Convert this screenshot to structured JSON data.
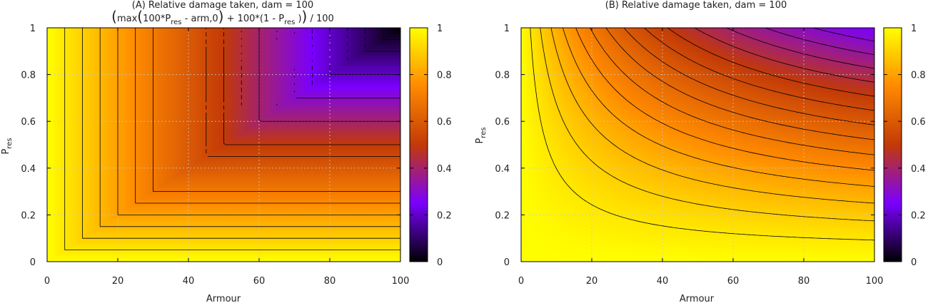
{
  "palette": {
    "stops": [
      "#000000",
      "#7a00ff",
      "#c23a08",
      "#ff8a00",
      "#ffff00"
    ],
    "grid": "#c8c8c8",
    "contour": "#000000"
  },
  "chart_data": [
    {
      "id": "A",
      "type": "heatmap",
      "title": "(A) Relative damage taken, dam = 100",
      "formula": {
        "open": "(",
        "max": "max",
        "inner_open": "(",
        "part1": "100*P",
        "sub1": "res",
        "part2": " - arm,0",
        "inner_close": ")",
        "part3": " + 100*(1 - P",
        "sub2": "res",
        "part4": " )",
        "close": ")",
        "tail": " / 100"
      },
      "xlabel": "Armour",
      "ylabel_main": "P",
      "ylabel_sub": "res",
      "xlim": [
        0,
        100
      ],
      "ylim": [
        0,
        1
      ],
      "xticks": [
        "0",
        "20",
        "40",
        "60",
        "80",
        "100"
      ],
      "yticks": [
        "0",
        "0.2",
        "0.4",
        "0.6",
        "0.8",
        "1"
      ],
      "colorbar": {
        "range": [
          0,
          1
        ],
        "ticks": [
          "0",
          "0.2",
          "0.4",
          "0.6",
          "0.8",
          "1"
        ]
      },
      "grid": true,
      "contour_interval": 0.05
    },
    {
      "id": "B",
      "type": "heatmap",
      "title": "(B) Relative damage taken, dam = 100",
      "xlabel": "Armour",
      "ylabel_main": "P",
      "ylabel_sub": "res",
      "xlim": [
        0,
        100
      ],
      "ylim": [
        0,
        1
      ],
      "xticks": [
        "0",
        "20",
        "40",
        "60",
        "80",
        "100"
      ],
      "yticks": [
        "0",
        "0.2",
        "0.4",
        "0.6",
        "0.8",
        "1"
      ],
      "colorbar": {
        "range": [
          0,
          1
        ],
        "ticks": [
          "0",
          "0.2",
          "0.4",
          "0.6",
          "0.8",
          "1"
        ]
      },
      "grid": true,
      "contour_interval": 0.05
    }
  ]
}
